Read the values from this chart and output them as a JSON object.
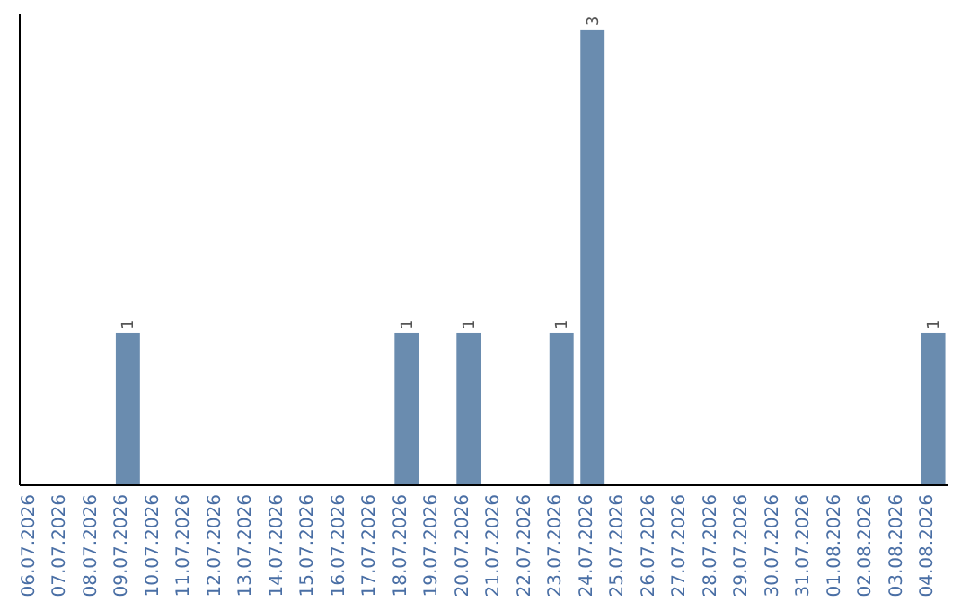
{
  "chart_data": {
    "type": "bar",
    "categories": [
      "06.07.2026",
      "07.07.2026",
      "08.07.2026",
      "09.07.2026",
      "10.07.2026",
      "11.07.2026",
      "12.07.2026",
      "13.07.2026",
      "14.07.2026",
      "15.07.2026",
      "16.07.2026",
      "17.07.2026",
      "18.07.2026",
      "19.07.2026",
      "20.07.2026",
      "21.07.2026",
      "22.07.2026",
      "23.07.2026",
      "24.07.2026",
      "25.07.2026",
      "26.07.2026",
      "27.07.2026",
      "28.07.2026",
      "29.07.2026",
      "30.07.2026",
      "31.07.2026",
      "01.08.2026",
      "02.08.2026",
      "03.08.2026",
      "04.08.2026"
    ],
    "values": [
      0,
      0,
      0,
      1,
      0,
      0,
      0,
      0,
      0,
      0,
      0,
      0,
      1,
      0,
      1,
      0,
      0,
      1,
      3,
      0,
      0,
      0,
      0,
      0,
      0,
      0,
      0,
      0,
      0,
      1
    ],
    "value_labels": [
      null,
      null,
      null,
      "1",
      null,
      null,
      null,
      null,
      null,
      null,
      null,
      null,
      "1",
      null,
      "1",
      null,
      null,
      "1",
      "3",
      null,
      null,
      null,
      null,
      null,
      null,
      null,
      null,
      null,
      null,
      "1"
    ],
    "color": "#6a8caf",
    "ylim": [
      0,
      3.1
    ],
    "tick_labels": "x"
  }
}
